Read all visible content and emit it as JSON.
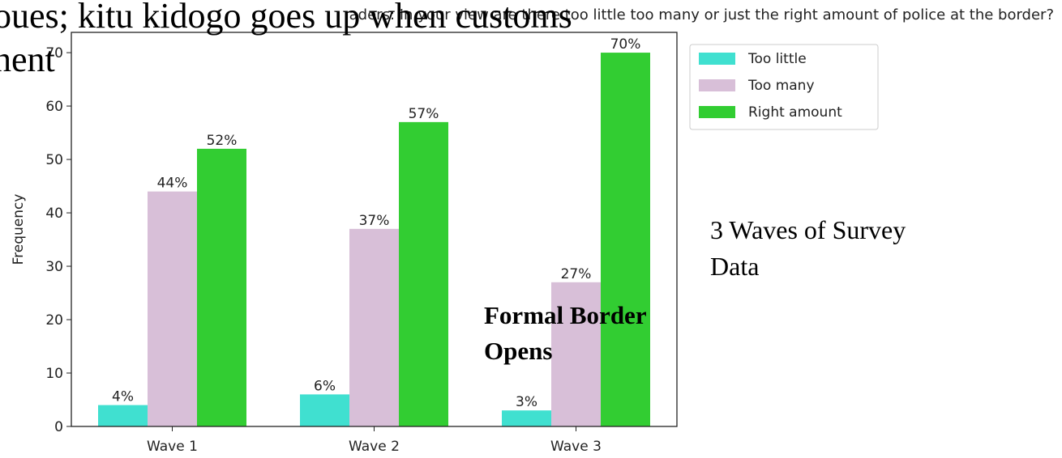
{
  "chart_data": {
    "type": "bar",
    "title": "aders: In your view are there too little too many or just the right amount of police at the border?",
    "overlay_text": [
      "oues; kitu kidogo goes up when customs",
      "nent"
    ],
    "ylabel": "Frequency",
    "categories": [
      "Wave 1",
      "Wave 2",
      "Wave 3"
    ],
    "series": [
      {
        "name": "Too little",
        "color": "#40e0d0",
        "values": [
          4,
          6,
          3
        ],
        "value_labels": [
          "4%",
          "6%",
          "3%"
        ]
      },
      {
        "name": "Too many",
        "color": "#d8bfd8",
        "values": [
          44,
          37,
          27
        ],
        "value_labels": [
          "44%",
          "37%",
          "27%"
        ]
      },
      {
        "name": "Right amount",
        "color": "#32cd32",
        "values": [
          52,
          57,
          70
        ],
        "value_labels": [
          "52%",
          "57%",
          "70%"
        ]
      }
    ],
    "ylim": [
      0,
      73.8
    ],
    "yticks": [
      0,
      10,
      20,
      30,
      40,
      50,
      60,
      70
    ],
    "legend": "outside-upper-right",
    "annotations": [
      [
        "3 Waves of Survey",
        "Data"
      ],
      [
        "Formal Border",
        "Opens"
      ]
    ]
  }
}
